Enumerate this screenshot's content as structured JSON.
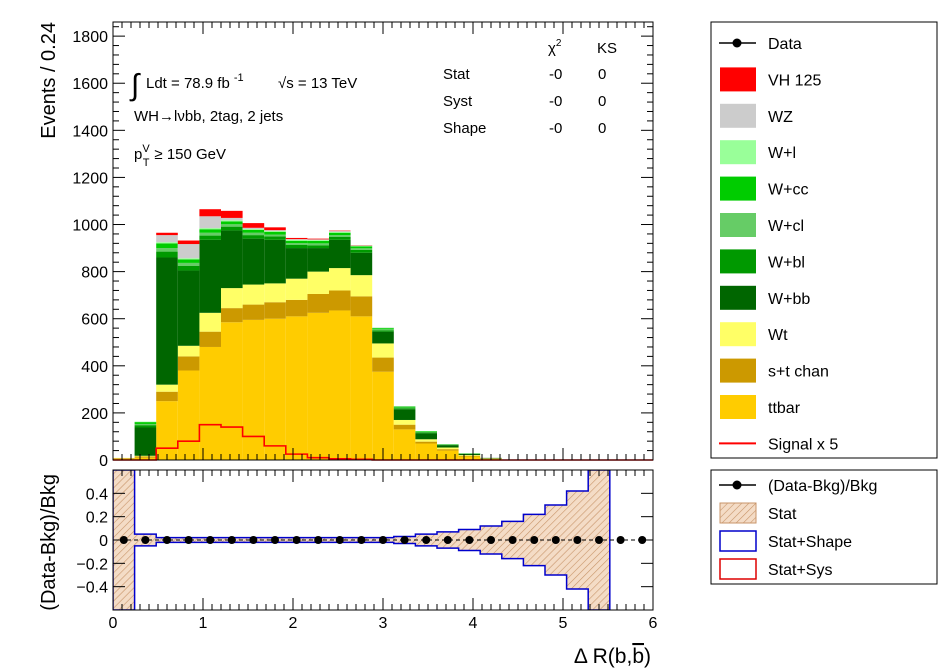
{
  "chart_data": [
    {
      "type": "bar",
      "stacked": true,
      "ylabel": "Events / 0.24",
      "ylim": [
        0,
        1860
      ],
      "yticks": [
        0,
        200,
        400,
        600,
        800,
        1000,
        1200,
        1400,
        1600,
        1800
      ],
      "xlim": [
        0,
        6
      ],
      "bin_width": 0.24,
      "annotations": {
        "lumi_prefix": "Ldt = 78.9 fb",
        "lumi_exp": "-1",
        "sqrt_s": "s = 13 TeV",
        "channel": "WH→lνbb, 2tag, 2 jets",
        "ptv_base": "p",
        "ptv_sup": "V",
        "ptv_sub": "T",
        "ptv_cut": "≥ 150 GeV"
      },
      "stats_table": {
        "col_chi2": "χ",
        "col_chi2_sup": "2",
        "col_ks": "KS",
        "rows": [
          {
            "label": "Stat",
            "chi2": "-0",
            "ks": "0"
          },
          {
            "label": "Syst",
            "chi2": "-0",
            "ks": "0"
          },
          {
            "label": "Shape",
            "chi2": "-0",
            "ks": "0"
          }
        ]
      },
      "legend": {
        "placement": "right",
        "entries": [
          {
            "label": "Data",
            "style": "marker"
          },
          {
            "label": "VH 125",
            "color": "#ff0000",
            "style": "fill"
          },
          {
            "label": "WZ",
            "color": "#cccccc",
            "style": "fill"
          },
          {
            "label": "W+l",
            "color": "#99ff99",
            "style": "fill"
          },
          {
            "label": "W+cc",
            "color": "#00cc00",
            "style": "fill"
          },
          {
            "label": "W+cl",
            "color": "#66cc66",
            "style": "fill"
          },
          {
            "label": "W+bl",
            "color": "#009900",
            "style": "fill"
          },
          {
            "label": "W+bb",
            "color": "#006600",
            "style": "fill"
          },
          {
            "label": "Wt",
            "color": "#ffff66",
            "style": "fill"
          },
          {
            "label": "s+t chan",
            "color": "#cc9900",
            "style": "fill"
          },
          {
            "label": "ttbar",
            "color": "#ffcc00",
            "style": "fill"
          },
          {
            "label": "Signal x 5",
            "color": "#ff0000",
            "style": "line"
          }
        ]
      },
      "series": [
        {
          "key": "ttbar",
          "color": "#ffcc00",
          "values": [
            5,
            10,
            250,
            380,
            480,
            585,
            595,
            600,
            610,
            625,
            635,
            610,
            375,
            130,
            70,
            40,
            15,
            5,
            2,
            0,
            0,
            0,
            0,
            0,
            0
          ]
        },
        {
          "key": "st",
          "color": "#cc9900",
          "values": [
            3,
            5,
            40,
            60,
            65,
            60,
            65,
            70,
            70,
            80,
            85,
            85,
            60,
            20,
            8,
            6,
            3,
            1,
            0,
            0,
            0,
            0,
            0,
            0,
            0
          ]
        },
        {
          "key": "Wt",
          "color": "#ffff66",
          "values": [
            1,
            3,
            30,
            45,
            80,
            85,
            85,
            80,
            90,
            95,
            95,
            90,
            60,
            20,
            10,
            7,
            3,
            1,
            0,
            0,
            0,
            0,
            0,
            0,
            0
          ]
        },
        {
          "key": "Wbb",
          "color": "#006600",
          "values": [
            0,
            120,
            540,
            320,
            310,
            245,
            195,
            185,
            130,
            100,
            120,
            95,
            50,
            45,
            25,
            10,
            5,
            2,
            0,
            0,
            0,
            0,
            0,
            0,
            0
          ]
        },
        {
          "key": "Wbl",
          "color": "#009900",
          "values": [
            0,
            10,
            25,
            20,
            18,
            16,
            15,
            14,
            13,
            12,
            12,
            12,
            6,
            5,
            4,
            2,
            1,
            0,
            0,
            0,
            0,
            0,
            0,
            0,
            0
          ]
        },
        {
          "key": "Wcl",
          "color": "#66cc66",
          "values": [
            0,
            5,
            15,
            12,
            12,
            10,
            10,
            8,
            8,
            8,
            8,
            7,
            4,
            3,
            2,
            1,
            0,
            0,
            0,
            0,
            0,
            0,
            0,
            0,
            0
          ]
        },
        {
          "key": "Wcc",
          "color": "#00cc00",
          "values": [
            0,
            8,
            20,
            15,
            15,
            12,
            12,
            12,
            10,
            10,
            10,
            8,
            5,
            4,
            3,
            1,
            1,
            0,
            0,
            0,
            0,
            0,
            0,
            0,
            0
          ]
        },
        {
          "key": "Wl",
          "color": "#99ff99",
          "values": [
            0,
            2,
            5,
            5,
            5,
            5,
            4,
            4,
            4,
            4,
            4,
            3,
            2,
            1,
            1,
            0,
            0,
            0,
            0,
            0,
            0,
            0,
            0,
            0,
            0
          ]
        },
        {
          "key": "WZ",
          "color": "#cccccc",
          "values": [
            0,
            0,
            30,
            60,
            50,
            10,
            5,
            3,
            3,
            3,
            3,
            2,
            1,
            1,
            0,
            0,
            0,
            0,
            0,
            0,
            0,
            0,
            0,
            0,
            0
          ]
        },
        {
          "key": "VH125",
          "color": "#ff0000",
          "values": [
            0,
            0,
            10,
            15,
            30,
            30,
            20,
            12,
            5,
            3,
            2,
            1,
            0,
            0,
            0,
            0,
            0,
            0,
            0,
            0,
            0,
            0,
            0,
            0,
            0
          ]
        }
      ],
      "signal_x5": {
        "color": "#ff0000",
        "values": [
          0,
          0,
          50,
          80,
          150,
          140,
          100,
          60,
          25,
          10,
          5,
          3,
          0,
          0,
          0,
          0,
          0,
          0,
          0,
          0,
          0,
          0,
          0,
          0,
          0
        ]
      }
    },
    {
      "type": "scatter",
      "ylabel": "(Data-Bkg)/Bkg",
      "xlabel_prefix": "Δ R(b,",
      "xlabel_bar": "b",
      "xlabel_suffix": ")",
      "ylim": [
        -0.6,
        0.6
      ],
      "yticks": [
        -0.4,
        -0.2,
        0,
        0.2,
        0.4
      ],
      "xlim": [
        0,
        6
      ],
      "xticks": [
        0,
        1,
        2,
        3,
        4,
        5,
        6
      ],
      "points_x": [
        0.12,
        0.36,
        0.6,
        0.84,
        1.08,
        1.32,
        1.56,
        1.8,
        2.04,
        2.28,
        2.52,
        2.76,
        3.0,
        3.24,
        3.48,
        3.72,
        3.96,
        4.2,
        4.44,
        4.68,
        4.92,
        5.16,
        5.4,
        5.64,
        5.88
      ],
      "points_y": [
        0,
        0,
        0,
        0,
        0,
        0,
        0,
        0,
        0,
        0,
        0,
        0,
        0,
        0,
        0,
        0,
        0,
        0,
        0,
        0,
        0,
        0,
        0,
        0,
        0
      ],
      "stat_band": [
        0.6,
        0.05,
        0.02,
        0.02,
        0.02,
        0.02,
        0.02,
        0.02,
        0.02,
        0.02,
        0.02,
        0.02,
        0.02,
        0.03,
        0.05,
        0.07,
        0.09,
        0.12,
        0.16,
        0.22,
        0.3,
        0.42,
        0.6,
        0,
        0
      ],
      "legend": {
        "entries": [
          {
            "label": "(Data-Bkg)/Bkg",
            "style": "marker"
          },
          {
            "label": "Stat",
            "color": "#e6b891",
            "style": "hatch"
          },
          {
            "label": "Stat+Shape",
            "color": "#0000cc",
            "style": "box"
          },
          {
            "label": "Stat+Sys",
            "color": "#dd0000",
            "style": "box"
          }
        ]
      }
    }
  ]
}
